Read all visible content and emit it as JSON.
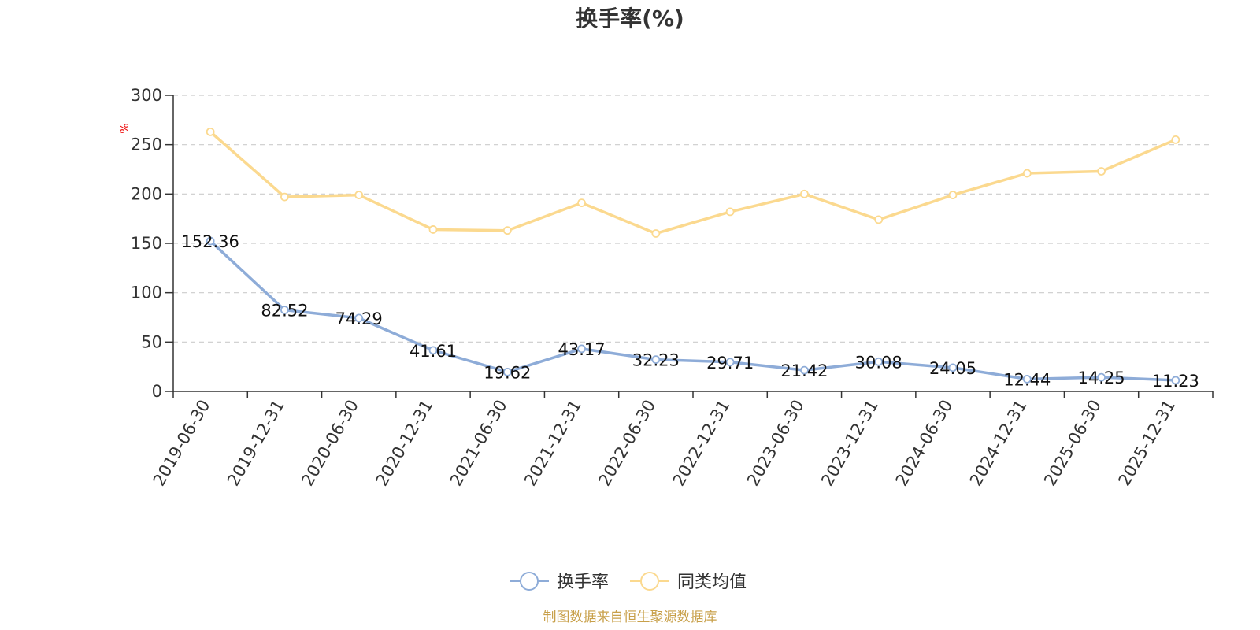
{
  "chart_data": {
    "type": "line",
    "title": "换手率(%)",
    "unit_label": "%",
    "categories": [
      "2019-06-30",
      "2019-12-31",
      "2020-06-30",
      "2020-12-31",
      "2021-06-30",
      "2021-12-31",
      "2022-06-30",
      "2022-12-31",
      "2023-06-30",
      "2023-12-31",
      "2024-06-30",
      "2024-12-31",
      "2025-06-30",
      "2025-12-31"
    ],
    "yticks": [
      "0",
      "50",
      "100",
      "150",
      "200",
      "250",
      "300"
    ],
    "ylim": [
      0,
      300
    ],
    "grid": true,
    "legend_position": "bottom-center",
    "series": [
      {
        "name": "换手率",
        "color": "#8eacd8",
        "show_labels": true,
        "values": [
          152.36,
          82.52,
          74.29,
          41.61,
          19.62,
          43.17,
          32.23,
          29.71,
          21.42,
          30.08,
          24.05,
          12.44,
          14.25,
          11.23
        ],
        "labels": [
          "152.36",
          "82.52",
          "74.29",
          "41.61",
          "19.62",
          "43.17",
          "32.23",
          "29.71",
          "21.42",
          "30.08",
          "24.05",
          "12.44",
          "14.25",
          "11.23"
        ]
      },
      {
        "name": "同类均值",
        "color": "#fbd98f",
        "show_labels": false,
        "values": [
          263,
          197,
          199,
          164,
          163,
          191,
          160,
          182,
          200,
          174,
          199,
          221,
          223,
          255
        ]
      }
    ]
  },
  "source_note": "制图数据来自恒生聚源数据库"
}
